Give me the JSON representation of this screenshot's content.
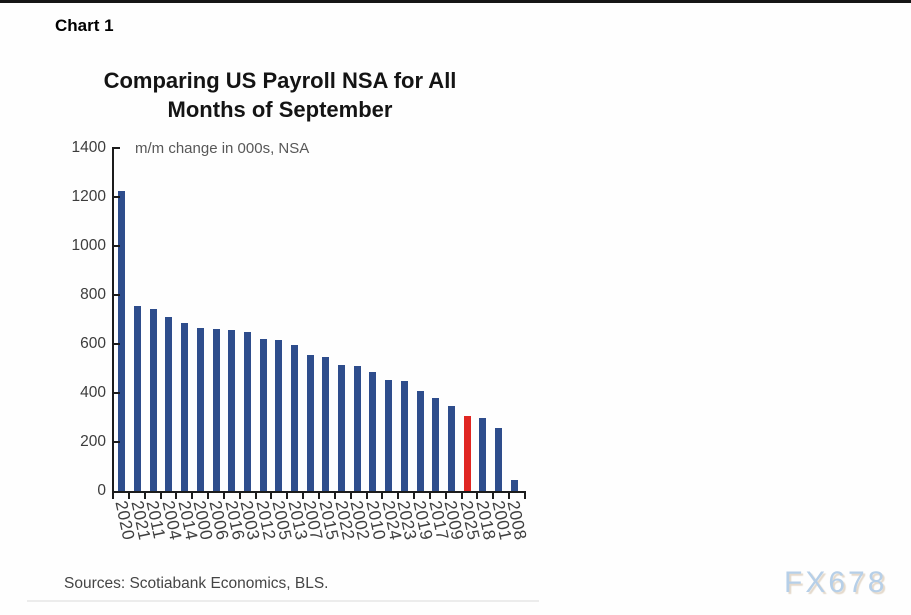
{
  "header": {
    "chart_label": "Chart 1",
    "title_line1": "Comparing US Payroll NSA for All",
    "title_line2": "Months of September",
    "subtitle": "m/m change in 000s, NSA"
  },
  "footer": {
    "sources": "Sources: Scotiabank Economics, BLS.",
    "watermark": "FX678"
  },
  "colors": {
    "bar": "#2e4d8c",
    "highlight": "#e02622",
    "axis": "#1c1c1c",
    "watermark": "#b6cfe8"
  },
  "chart_data": {
    "type": "bar",
    "title": "Comparing US Payroll NSA for All Months of September",
    "subtitle": "m/m change in 000s, NSA",
    "xlabel": "",
    "ylabel": "m/m change in 000s, NSA",
    "ylim": [
      0,
      1400
    ],
    "yticks": [
      0,
      200,
      400,
      600,
      800,
      1000,
      1200,
      1400
    ],
    "grid": false,
    "legend": false,
    "bar_color": "#2e4d8c",
    "highlight_color": "#e02622",
    "highlight_category": "2025",
    "categories": [
      "2020",
      "2021",
      "2011",
      "2004",
      "2014",
      "2000",
      "2006",
      "2016",
      "2003",
      "2012",
      "2005",
      "2013",
      "2007",
      "2015",
      "2022",
      "2002",
      "2010",
      "2024",
      "2023",
      "2019",
      "2017",
      "2009",
      "2025",
      "2018",
      "2001",
      "2008"
    ],
    "values": [
      1225,
      755,
      745,
      710,
      685,
      667,
      662,
      657,
      648,
      622,
      617,
      597,
      555,
      547,
      515,
      510,
      485,
      452,
      448,
      408,
      381,
      347,
      308,
      300,
      256,
      45
    ]
  }
}
